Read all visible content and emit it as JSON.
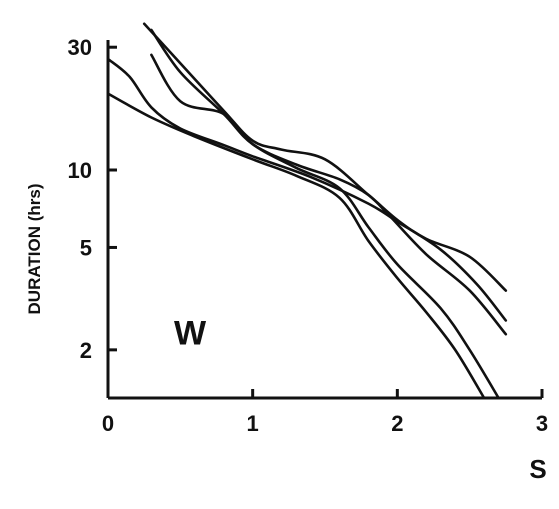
{
  "chart_data": {
    "type": "line",
    "ylabel": "DURATION (hrs)",
    "xlabel": "S",
    "panel_label": "W",
    "yscale": "log",
    "xlim": [
      0,
      3
    ],
    "ylim": [
      1.3,
      32
    ],
    "x_ticks": [
      "0",
      "1",
      "2",
      "3"
    ],
    "y_ticks": [
      "2",
      "5",
      "10",
      "30"
    ],
    "y_tick_values": [
      2,
      5,
      10,
      30
    ],
    "grid": false,
    "series": [
      {
        "x": [
          0.0,
          0.3,
          0.6,
          1.0,
          1.3,
          1.6,
          1.8,
          2.0,
          2.2,
          2.4,
          2.6
        ],
        "y": [
          19.8,
          16.0,
          13.5,
          11.0,
          9.5,
          7.8,
          5.3,
          3.8,
          2.8,
          2.0,
          1.3
        ]
      },
      {
        "x": [
          0.0,
          0.15,
          0.3,
          0.5,
          0.8,
          1.0,
          1.4,
          1.8,
          2.0,
          2.3,
          2.55,
          2.75
        ],
        "y": [
          27.0,
          23.0,
          17.5,
          14.5,
          12.5,
          11.3,
          9.4,
          7.4,
          6.3,
          4.9,
          3.6,
          2.6
        ]
      },
      {
        "x": [
          0.25,
          0.5,
          0.8,
          1.0,
          1.2,
          1.5,
          1.8,
          2.0,
          2.2,
          2.5,
          2.75
        ],
        "y": [
          37.0,
          26.0,
          17.0,
          13.0,
          12.0,
          11.0,
          8.0,
          6.4,
          5.4,
          4.6,
          3.4
        ]
      },
      {
        "x": [
          0.3,
          0.5,
          0.8,
          1.0,
          1.3,
          1.6,
          1.8,
          1.95,
          2.2,
          2.5,
          2.75
        ],
        "y": [
          35.0,
          24.0,
          16.5,
          12.6,
          10.5,
          9.2,
          8.0,
          6.6,
          4.7,
          3.4,
          2.3
        ]
      },
      {
        "x": [
          0.3,
          0.5,
          0.8,
          1.0,
          1.3,
          1.6,
          1.8,
          2.0,
          2.3,
          2.5,
          2.7
        ],
        "y": [
          28.0,
          18.5,
          16.5,
          12.6,
          10.2,
          8.5,
          6.0,
          4.3,
          2.9,
          2.0,
          1.3
        ]
      }
    ]
  }
}
